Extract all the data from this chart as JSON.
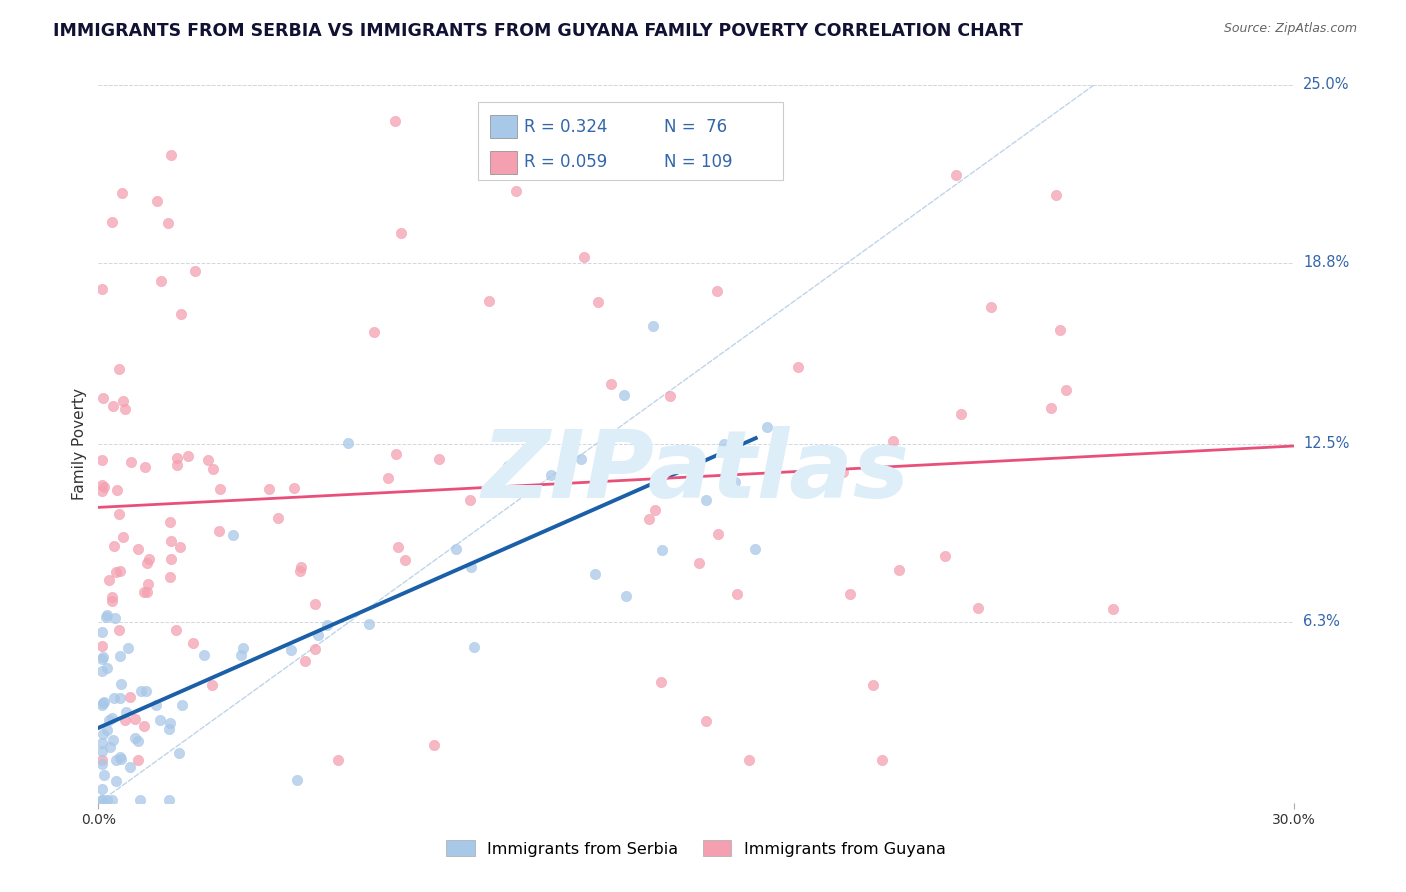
{
  "title": "IMMIGRANTS FROM SERBIA VS IMMIGRANTS FROM GUYANA FAMILY POVERTY CORRELATION CHART",
  "source_text": "Source: ZipAtlas.com",
  "ylabel": "Family Poverty",
  "xlim": [
    0.0,
    0.3
  ],
  "ylim": [
    0.0,
    0.25
  ],
  "ytick_labels_right": [
    "6.3%",
    "12.5%",
    "18.8%",
    "25.0%"
  ],
  "ytick_vals_right": [
    0.063,
    0.125,
    0.188,
    0.25
  ],
  "serbia_color": "#a8c8e8",
  "guyana_color": "#f4a0b0",
  "serbia_line_color": "#1a5fa8",
  "guyana_line_color": "#e8507a",
  "diagonal_color": "#b8d0e8",
  "watermark_color": "#ddeef8",
  "background_color": "#ffffff",
  "title_fontsize": 12.5,
  "axis_label_fontsize": 11,
  "legend_text_color": "#3366aa"
}
